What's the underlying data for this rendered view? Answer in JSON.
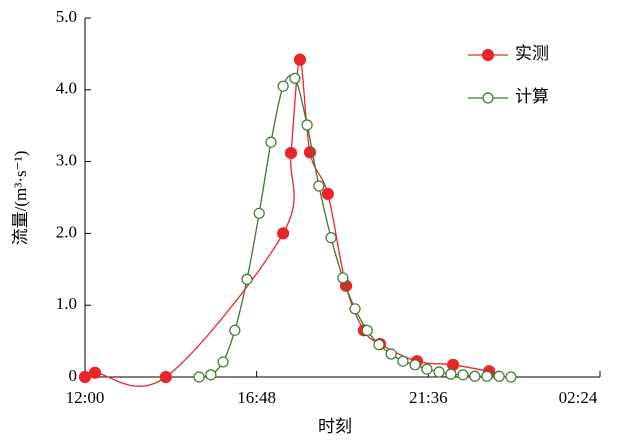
{
  "chart_data": {
    "type": "line",
    "x_label": "时刻",
    "y_label": "流量/(m³·s⁻¹)",
    "xlim": [
      12,
      26.4
    ],
    "xticks": [
      {
        "value": 12,
        "label": "12:00"
      },
      {
        "value": 16.8,
        "label": "16:48"
      },
      {
        "value": 21.6,
        "label": "21:36"
      },
      {
        "value": 26.4,
        "label": "02:24"
      }
    ],
    "ylim": [
      0,
      5
    ],
    "yticks": [
      0,
      {
        "value": 1,
        "label": "1.0"
      },
      {
        "value": 2,
        "label": "2.0"
      },
      {
        "value": 3,
        "label": "3.0"
      },
      {
        "value": 4,
        "label": "4.0"
      },
      {
        "value": 5,
        "label": "5.0"
      }
    ],
    "legend": "upper right",
    "series": [
      {
        "name": "实测",
        "color": "#e8262a",
        "marker": "filled",
        "x": [
          12.0,
          12.28,
          14.26,
          17.54,
          17.76,
          18.01,
          18.29,
          18.79,
          19.3,
          19.8,
          20.25,
          21.28,
          22.29,
          23.3
        ],
        "values": [
          0.0,
          0.06,
          0.0,
          2.0,
          3.12,
          4.42,
          3.13,
          2.55,
          1.27,
          0.65,
          0.46,
          0.22,
          0.17,
          0.08
        ]
      },
      {
        "name": "计算",
        "color": "#3a7a2a",
        "marker": "open",
        "x": [
          15.19,
          15.52,
          15.86,
          16.19,
          16.53,
          16.87,
          17.2,
          17.54,
          17.87,
          18.21,
          18.54,
          18.88,
          19.21,
          19.55,
          19.89,
          20.22,
          20.56,
          20.89,
          21.23,
          21.56,
          21.9,
          22.23,
          22.57,
          22.9,
          23.24,
          23.58,
          23.91
        ],
        "values": [
          0.0,
          0.03,
          0.21,
          0.65,
          1.36,
          2.28,
          3.27,
          4.05,
          4.16,
          3.51,
          2.66,
          1.94,
          1.38,
          0.95,
          0.65,
          0.45,
          0.32,
          0.22,
          0.17,
          0.11,
          0.07,
          0.04,
          0.03,
          0.01,
          0.01,
          0.01,
          0.0
        ]
      }
    ]
  }
}
